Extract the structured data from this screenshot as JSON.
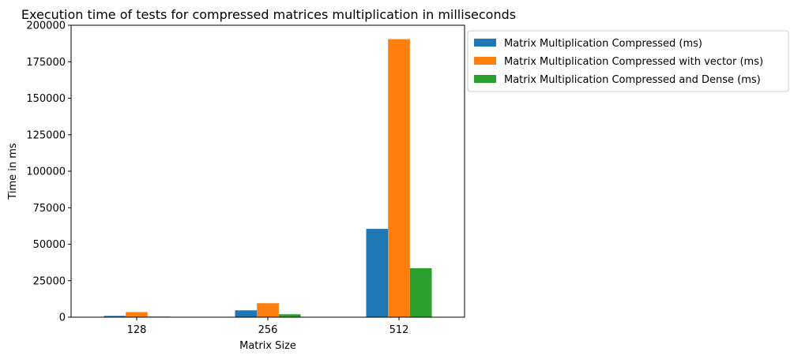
{
  "chart_data": {
    "type": "bar",
    "title": "Execution time of tests for compressed matrices multiplication in milliseconds",
    "xlabel": "Matrix Size",
    "ylabel": "Time in ms",
    "categories": [
      "128",
      "256",
      "512"
    ],
    "ylim": [
      0,
      200000
    ],
    "yticks": [
      0,
      25000,
      50000,
      75000,
      100000,
      125000,
      150000,
      175000,
      200000
    ],
    "grid": false,
    "legend_position": "outside-upper-right",
    "series": [
      {
        "name": "Matrix Multiplication Compressed (ms)",
        "color": "#1f77b4",
        "values": [
          900,
          4700,
          60500
        ]
      },
      {
        "name": "Matrix Multiplication Compressed with vector (ms)",
        "color": "#ff7f0e",
        "values": [
          3500,
          9600,
          190500
        ]
      },
      {
        "name": "Matrix Multiplication Compressed and Dense (ms)",
        "color": "#2ca02c",
        "values": [
          400,
          2000,
          33500
        ]
      }
    ]
  }
}
